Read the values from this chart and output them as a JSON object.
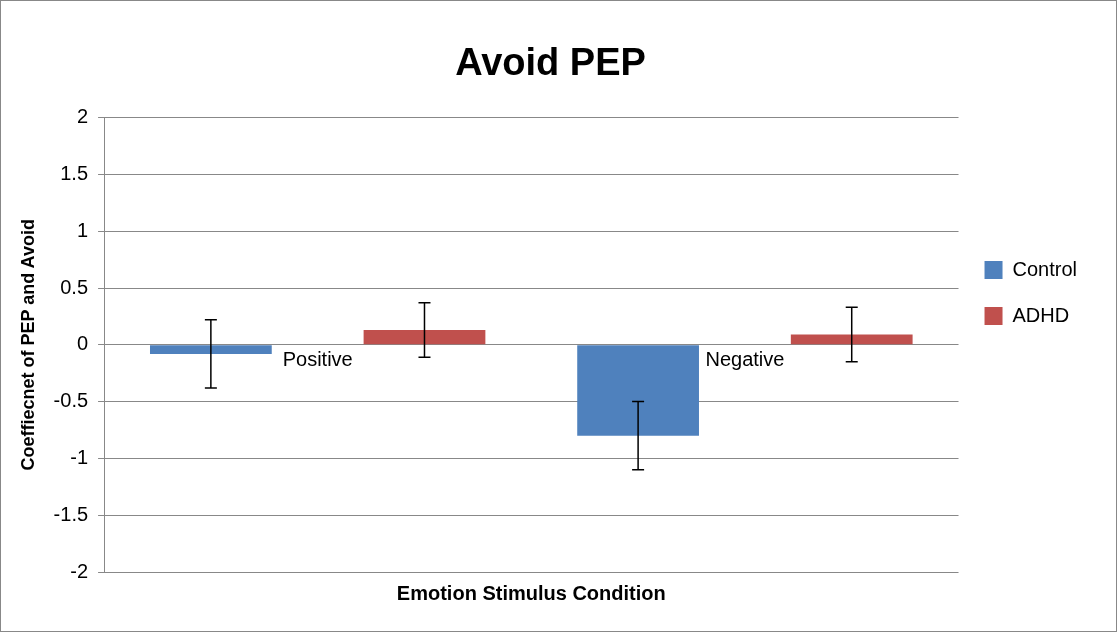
{
  "chart_data": {
    "type": "bar",
    "title": "Avoid PEP",
    "xlabel": "Emotion Stimulus Condition",
    "ylabel": "Coeffiecnet of PEP and Avoid",
    "categories": [
      "Positive",
      "Negative"
    ],
    "series": [
      {
        "name": "Control",
        "color": "#4f81bd",
        "values": [
          -0.08,
          -0.8
        ],
        "errors": [
          0.3,
          0.3
        ]
      },
      {
        "name": "ADHD",
        "color": "#c0504d",
        "values": [
          0.13,
          0.09
        ],
        "errors": [
          0.24,
          0.24
        ]
      }
    ],
    "ylim": [
      -2,
      2
    ],
    "yticks": [
      -2,
      -1.5,
      -1,
      -0.5,
      0,
      0.5,
      1,
      1.5,
      2
    ],
    "grid": "y",
    "legend": "right"
  }
}
